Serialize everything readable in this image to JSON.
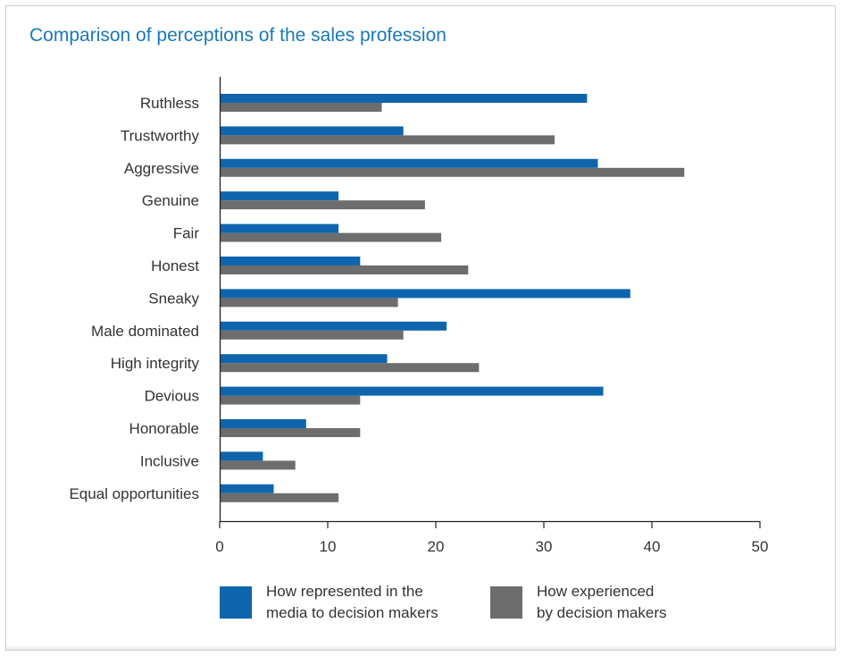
{
  "title": "Comparison of perceptions of the sales profession",
  "colors": {
    "title": "#1a78b8",
    "media": "#0f65ad",
    "experienced": "#6d6d6d",
    "axis": "#222222",
    "text": "#333333"
  },
  "legend": [
    {
      "line1": "How represented in the",
      "line2": "media to decision makers"
    },
    {
      "line1": "How experienced",
      "line2": "by decision makers"
    }
  ],
  "chart_data": {
    "type": "bar",
    "orientation": "horizontal",
    "categories": [
      "Ruthless",
      "Trustworthy",
      "Aggressive",
      "Genuine",
      "Fair",
      "Honest",
      "Sneaky",
      "Male dominated",
      "High integrity",
      "Devious",
      "Honorable",
      "Inclusive",
      "Equal opportunities"
    ],
    "series": [
      {
        "name": "How represented in the media to decision makers",
        "color": "#0f65ad",
        "values": [
          34,
          17,
          35,
          11,
          11,
          13,
          38,
          21,
          15.5,
          35.5,
          8,
          4,
          5
        ]
      },
      {
        "name": "How experienced by decision makers",
        "color": "#6d6d6d",
        "values": [
          15,
          31,
          43,
          19,
          20.5,
          23,
          16.5,
          17,
          24,
          13,
          13,
          7,
          11
        ]
      }
    ],
    "xlim": [
      0,
      50
    ],
    "xticks": [
      0,
      10,
      20,
      30,
      40,
      50
    ],
    "legend_position": "bottom",
    "grid": false
  }
}
